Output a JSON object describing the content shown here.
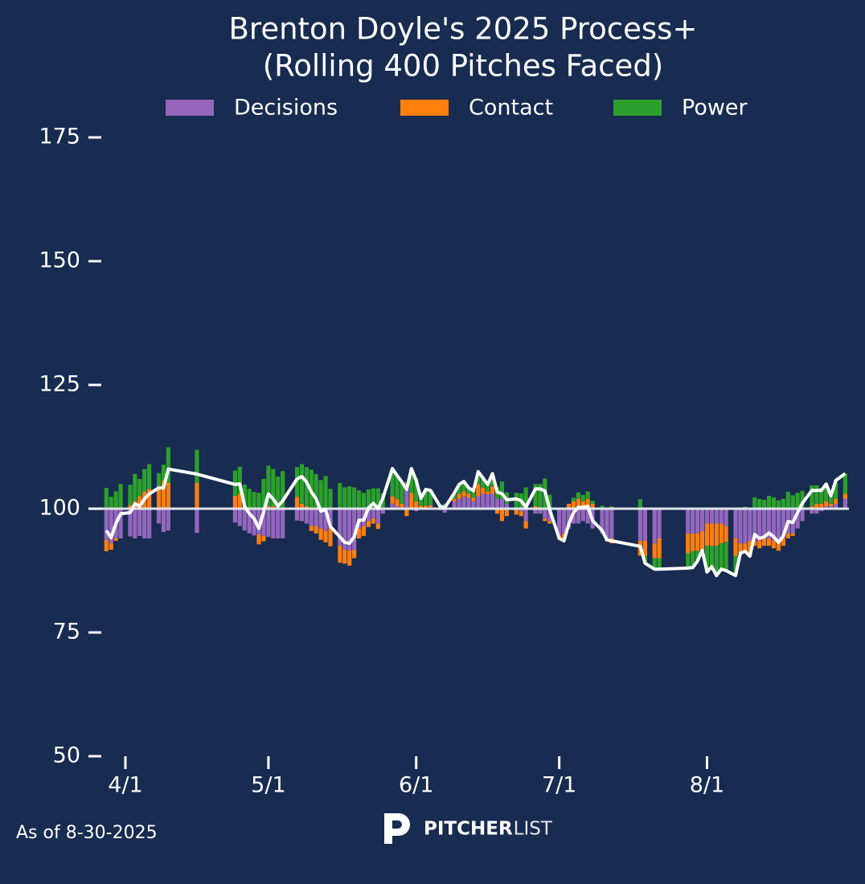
{
  "chart_data": {
    "type": "bar",
    "title": "Brenton Doyle's 2025 Process+",
    "subtitle": "(Rolling 400 Pitches Faced)",
    "legend": "upper center",
    "baseline": 100,
    "ylim": [
      50,
      175
    ],
    "yticks": [
      50,
      75,
      100,
      125,
      150,
      175
    ],
    "xlim": [
      "3/27",
      "9/1"
    ],
    "xticks": [
      "4/1",
      "5/1",
      "6/1",
      "7/1",
      "8/1"
    ],
    "x": [
      "3/28",
      "3/29",
      "3/30",
      "3/31",
      "4/2",
      "4/3",
      "4/4",
      "4/5",
      "4/6",
      "4/8",
      "4/9",
      "4/10",
      "4/16",
      "4/24",
      "4/25",
      "4/26",
      "4/27",
      "4/28",
      "4/29",
      "4/30",
      "5/1",
      "5/2",
      "5/3",
      "5/4",
      "5/7",
      "5/8",
      "5/9",
      "5/10",
      "5/11",
      "5/12",
      "5/13",
      "5/14",
      "5/16",
      "5/17",
      "5/18",
      "5/19",
      "5/20",
      "5/21",
      "5/22",
      "5/23",
      "5/24",
      "5/25",
      "5/27",
      "5/28",
      "5/29",
      "5/30",
      "5/31",
      "6/1",
      "6/2",
      "6/3",
      "6/4",
      "6/6",
      "6/7",
      "6/9",
      "6/10",
      "6/11",
      "6/12",
      "6/13",
      "6/14",
      "6/15",
      "6/16",
      "6/17",
      "6/18",
      "6/19",
      "6/20",
      "6/22",
      "6/23",
      "6/24",
      "6/26",
      "6/27",
      "6/28",
      "6/29",
      "7/1",
      "7/2",
      "7/3",
      "7/4",
      "7/5",
      "7/6",
      "7/7",
      "7/8",
      "7/10",
      "7/11",
      "7/12",
      "7/18",
      "7/19",
      "7/21",
      "7/22",
      "7/28",
      "7/29",
      "7/30",
      "7/31",
      "8/1",
      "8/2",
      "8/3",
      "8/4",
      "8/5",
      "8/7",
      "8/8",
      "8/9",
      "8/10",
      "8/11",
      "8/12",
      "8/13",
      "8/14",
      "8/15",
      "8/16",
      "8/17",
      "8/18",
      "8/19",
      "8/20",
      "8/21",
      "8/23",
      "8/24",
      "8/25",
      "8/26",
      "8/27",
      "8/28",
      "8/30"
    ],
    "series": [
      {
        "name": "Decisions",
        "color": "#9467bd",
        "values": [
          -6.3,
          -7,
          -6,
          -6,
          -5.6,
          -6,
          -5.5,
          -6,
          -6,
          -3,
          -4.7,
          -4.4,
          -4.9,
          -2.8,
          -3.5,
          -4.4,
          -5,
          -5.4,
          -5.2,
          -5.5,
          -5.7,
          -6,
          -6,
          -6,
          -2.4,
          -2.5,
          -3,
          -3.5,
          -3.5,
          -4,
          -4.5,
          -4,
          -7.5,
          -8.3,
          -8.5,
          -8.3,
          -4,
          -3.5,
          -2.5,
          -2,
          -3,
          -1,
          1,
          0.5,
          0,
          4.5,
          0,
          -0.5,
          0,
          0,
          0.3,
          -0.3,
          -0.8,
          1.5,
          2,
          2.5,
          2.2,
          1.5,
          2.5,
          3,
          3,
          3,
          2,
          2,
          1,
          0,
          -0.5,
          -2.5,
          -1,
          -1,
          -2,
          -2.5,
          -5.5,
          -5,
          -4,
          -3,
          -3,
          -2.5,
          -3,
          -4,
          -5,
          -6,
          -6,
          -6.5,
          -6.5,
          -7,
          -6,
          -5,
          -5,
          -5,
          -4.5,
          -3,
          -3,
          -3,
          -3,
          -3.5,
          -6,
          -7,
          -7,
          -6.5,
          -6.5,
          -6.5,
          -6,
          -6,
          -6.5,
          -6.5,
          -6,
          -5,
          -5,
          -4,
          -2.5,
          -1,
          -1,
          -0.5,
          0.5,
          0.5,
          1,
          2
        ]
      },
      {
        "name": "Contact",
        "color": "#ff7f0e",
        "values": [
          -2.3,
          -1.3,
          -0.5,
          0.3,
          0.7,
          1.5,
          2.5,
          3.5,
          4,
          4.1,
          5.7,
          5.2,
          5.2,
          2.6,
          3,
          0.5,
          0.3,
          0.2,
          -2,
          -1.1,
          0.5,
          0.5,
          0,
          0.3,
          2.4,
          1,
          0.5,
          -1,
          -1.5,
          -2.3,
          -2.3,
          -3.6,
          -3.4,
          -2.8,
          -3,
          -1.7,
          -2,
          -2,
          -1.2,
          -1,
          -1.1,
          0,
          1.5,
          1.5,
          1,
          -1.5,
          3.2,
          1.5,
          0.6,
          0.6,
          0.4,
          0.3,
          0.2,
          0.5,
          1,
          1,
          0.8,
          0.7,
          2.5,
          1.2,
          0.5,
          1.5,
          -1,
          -2.5,
          -1.5,
          -1.2,
          -1,
          -1.5,
          0.5,
          0.3,
          -0.5,
          -0.5,
          -0.5,
          -1,
          1,
          1.5,
          2,
          1.5,
          2,
          1,
          0.2,
          -0.5,
          -1,
          -3,
          -3,
          -3,
          -4,
          -4,
          -3.6,
          -3.5,
          -3.9,
          -4.5,
          -4.5,
          -4.5,
          -4,
          -3.2,
          -3.5,
          -2,
          -2,
          -3,
          -1,
          -1.5,
          -1.5,
          -1.5,
          -1.5,
          -2,
          -1.5,
          -1,
          -0.5,
          0,
          0,
          0.5,
          1,
          1,
          1,
          0.5,
          1,
          1
        ]
      },
      {
        "name": "Power",
        "color": "#2ca02c",
        "values": [
          4.2,
          2.4,
          3.5,
          4.7,
          4.1,
          5.5,
          3.5,
          4.5,
          5,
          3.1,
          3.2,
          7.2,
          6.7,
          5.1,
          5.5,
          4.4,
          3.7,
          3.2,
          3.2,
          6,
          8.2,
          7.5,
          6.5,
          7.3,
          6,
          8,
          7.9,
          7.9,
          7,
          5.8,
          6.6,
          4,
          5.2,
          4.3,
          4.5,
          4.3,
          3.7,
          3.2,
          3.9,
          4.1,
          4.1,
          3.1,
          5.6,
          4.7,
          4.4,
          0.9,
          4.9,
          4.7,
          1.5,
          3.3,
          3,
          0.5,
          0.8,
          1.2,
          1.9,
          2,
          1.2,
          1.4,
          2.5,
          2,
          1.4,
          2.6,
          2.4,
          3.5,
          2.3,
          3.2,
          3.1,
          4.3,
          4.5,
          4.7,
          6.1,
          2.8,
          0,
          -0.5,
          -0.1,
          0.7,
          1.3,
          1.3,
          1.5,
          0.6,
          0.4,
          0.2,
          0.5,
          1.9,
          -1.5,
          -2.2,
          -2.2,
          -3,
          -3.3,
          -2.1,
          0,
          -5.3,
          -4.2,
          -6,
          -5.2,
          -5.8,
          -4,
          0,
          0.4,
          -0.1,
          2.3,
          2,
          1.8,
          2.6,
          2.3,
          1.7,
          2,
          3.4,
          2.7,
          3.2,
          3.6,
          4.2,
          3.7,
          3.2,
          3.5,
          1.6,
          3.7,
          4.1
        ]
      }
    ],
    "line": {
      "color": "#ffffff",
      "values": [
        95.6,
        94.1,
        97,
        99,
        99.2,
        101,
        100.5,
        102,
        103,
        104.2,
        104.2,
        108,
        107,
        104.9,
        105,
        100.5,
        99,
        98,
        96,
        99.4,
        103,
        102,
        100.5,
        101.6,
        106,
        106.5,
        105.4,
        103.4,
        102,
        99.5,
        99.8,
        96.4,
        94.3,
        93.2,
        93,
        94.3,
        97.7,
        97.7,
        100.2,
        101.1,
        100,
        102.1,
        108.1,
        106.7,
        105.4,
        103.9,
        108.1,
        105.7,
        102.1,
        103.9,
        103.7,
        100.5,
        100.2,
        103.2,
        104.9,
        105.5,
        104.2,
        103.6,
        107.5,
        106.2,
        104.9,
        107.1,
        103.4,
        103,
        101.8,
        102,
        101.6,
        100.3,
        104,
        104,
        103.6,
        99.8,
        94,
        93.5,
        96.9,
        99.2,
        100.3,
        100.3,
        100.5,
        97.6,
        95.6,
        93.7,
        93.5,
        92.4,
        89,
        87.8,
        87.8,
        88,
        88.1,
        89.4,
        91.6,
        87.2,
        88.3,
        86.5,
        87.8,
        87.5,
        86.5,
        91,
        91.4,
        90.4,
        94.8,
        94,
        94.3,
        95.1,
        94.3,
        93.2,
        94.5,
        97.4,
        97.2,
        99.2,
        101.1,
        103.7,
        103.7,
        103.7,
        105,
        102.6,
        105.7,
        107.1
      ]
    }
  },
  "footer_note": "As of 8-30-2025",
  "logo_bold": "PITCHER",
  "logo_light": "LIST"
}
